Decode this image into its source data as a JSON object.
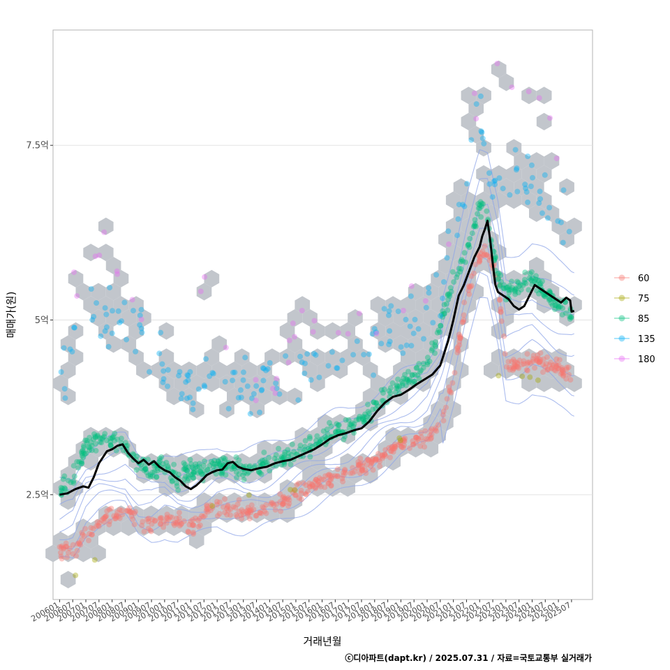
{
  "chart_data": {
    "type": "scatter",
    "title": "",
    "xlabel": "거래년월",
    "ylabel": "매매가(원)",
    "caption": "ⓒ디아파트(dapt.kr) / 2025.07.31 / 자료=국토교통부 실거래가",
    "x_range": [
      2005.75,
      2026.3
    ],
    "ylim": [
      1.0,
      9.15
    ],
    "y_ticks": [
      {
        "value": 2.5,
        "label": "2.5억"
      },
      {
        "value": 5.0,
        "label": "5억"
      },
      {
        "value": 7.5,
        "label": "7.5억"
      }
    ],
    "x_ticks": [
      {
        "value": 2006.0,
        "label": "200601"
      },
      {
        "value": 2006.5,
        "label": "200607"
      },
      {
        "value": 2007.0,
        "label": "200701"
      },
      {
        "value": 2007.5,
        "label": "200707"
      },
      {
        "value": 2008.0,
        "label": "200801"
      },
      {
        "value": 2008.5,
        "label": "200807"
      },
      {
        "value": 2009.0,
        "label": "200901"
      },
      {
        "value": 2009.5,
        "label": "200907"
      },
      {
        "value": 2010.0,
        "label": "201001"
      },
      {
        "value": 2010.5,
        "label": "201007"
      },
      {
        "value": 2011.0,
        "label": "201101"
      },
      {
        "value": 2011.5,
        "label": "201107"
      },
      {
        "value": 2012.0,
        "label": "201201"
      },
      {
        "value": 2012.5,
        "label": "201207"
      },
      {
        "value": 2013.0,
        "label": "201301"
      },
      {
        "value": 2013.5,
        "label": "201307"
      },
      {
        "value": 2014.0,
        "label": "201401"
      },
      {
        "value": 2014.5,
        "label": "201407"
      },
      {
        "value": 2015.0,
        "label": "201501"
      },
      {
        "value": 2015.5,
        "label": "201507"
      },
      {
        "value": 2016.0,
        "label": "201601"
      },
      {
        "value": 2016.5,
        "label": "201607"
      },
      {
        "value": 2017.0,
        "label": "201701"
      },
      {
        "value": 2017.5,
        "label": "201707"
      },
      {
        "value": 2018.0,
        "label": "201801"
      },
      {
        "value": 2018.5,
        "label": "201807"
      },
      {
        "value": 2019.0,
        "label": "201901"
      },
      {
        "value": 2019.5,
        "label": "201907"
      },
      {
        "value": 2020.0,
        "label": "202001"
      },
      {
        "value": 2020.5,
        "label": "202007"
      },
      {
        "value": 2021.0,
        "label": "202101"
      },
      {
        "value": 2021.5,
        "label": "202107"
      },
      {
        "value": 2022.0,
        "label": "202201"
      },
      {
        "value": 2022.5,
        "label": "202207"
      },
      {
        "value": 2023.0,
        "label": "202301"
      },
      {
        "value": 2023.5,
        "label": "202307"
      },
      {
        "value": 2024.0,
        "label": "202401"
      },
      {
        "value": 2024.5,
        "label": "202407"
      },
      {
        "value": 2025.0,
        "label": "202501"
      },
      {
        "value": 2025.5,
        "label": "202507"
      }
    ],
    "legend": {
      "position": "right",
      "entries": [
        {
          "name": "60",
          "color": "#F8766D"
        },
        {
          "name": "75",
          "color": "#A3A500"
        },
        {
          "name": "85",
          "color": "#00BF7D"
        },
        {
          "name": "135",
          "color": "#00B0F6"
        },
        {
          "name": "180",
          "color": "#E76BF3"
        }
      ]
    },
    "hexbin_color": "#c2c6cc",
    "contour_color": "#8fa6e8",
    "median_line_color": "#000000",
    "series": [
      {
        "name": "60",
        "color": "#F8766D",
        "trend": [
          [
            2006.0,
            1.72
          ],
          [
            2006.5,
            1.68
          ],
          [
            2007.0,
            1.95
          ],
          [
            2007.5,
            2.1
          ],
          [
            2008.0,
            2.18
          ],
          [
            2008.5,
            2.3
          ],
          [
            2009.0,
            2.08
          ],
          [
            2009.5,
            2.05
          ],
          [
            2010.0,
            2.15
          ],
          [
            2010.5,
            2.1
          ],
          [
            2011.0,
            2.05
          ],
          [
            2011.5,
            2.2
          ],
          [
            2012.0,
            2.3
          ],
          [
            2012.5,
            2.3
          ],
          [
            2013.0,
            2.25
          ],
          [
            2013.5,
            2.25
          ],
          [
            2014.0,
            2.3
          ],
          [
            2014.5,
            2.4
          ],
          [
            2015.0,
            2.5
          ],
          [
            2015.5,
            2.6
          ],
          [
            2016.0,
            2.68
          ],
          [
            2016.5,
            2.75
          ],
          [
            2017.0,
            2.8
          ],
          [
            2017.5,
            2.9
          ],
          [
            2018.0,
            3.0
          ],
          [
            2018.5,
            3.1
          ],
          [
            2019.0,
            3.2
          ],
          [
            2019.5,
            3.25
          ],
          [
            2020.0,
            3.3
          ],
          [
            2020.5,
            3.55
          ],
          [
            2021.0,
            4.2
          ],
          [
            2021.5,
            5.3
          ],
          [
            2022.0,
            5.95
          ],
          [
            2022.3,
            6.0
          ],
          [
            2022.7,
            5.6
          ],
          [
            2023.0,
            4.4
          ],
          [
            2023.5,
            4.35
          ],
          [
            2024.0,
            4.45
          ],
          [
            2024.5,
            4.4
          ],
          [
            2025.0,
            4.3
          ],
          [
            2025.5,
            4.2
          ]
        ],
        "spread": 0.12,
        "points": 520
      },
      {
        "name": "75",
        "color": "#A3A500",
        "trend": [
          [
            2006.3,
            1.2
          ],
          [
            2010.0,
            2.5
          ],
          [
            2012.0,
            2.3
          ],
          [
            2013.0,
            2.5
          ],
          [
            2015.5,
            2.6
          ],
          [
            2018.0,
            3.45
          ],
          [
            2019.5,
            3.2
          ],
          [
            2023.0,
            4.3
          ],
          [
            2025.2,
            3.95
          ]
        ],
        "spread": 0.05,
        "points": 12
      },
      {
        "name": "85",
        "color": "#00BF7D",
        "trend": [
          [
            2006.0,
            2.55
          ],
          [
            2006.5,
            2.7
          ],
          [
            2007.0,
            3.2
          ],
          [
            2007.5,
            3.3
          ],
          [
            2008.0,
            3.3
          ],
          [
            2008.5,
            3.2
          ],
          [
            2009.0,
            2.9
          ],
          [
            2009.5,
            2.85
          ],
          [
            2010.0,
            2.9
          ],
          [
            2010.5,
            2.75
          ],
          [
            2011.0,
            2.85
          ],
          [
            2011.5,
            2.85
          ],
          [
            2012.0,
            2.95
          ],
          [
            2012.5,
            2.9
          ],
          [
            2013.0,
            2.85
          ],
          [
            2013.5,
            2.9
          ],
          [
            2014.0,
            2.95
          ],
          [
            2014.5,
            3.0
          ],
          [
            2015.0,
            3.1
          ],
          [
            2015.5,
            3.2
          ],
          [
            2016.0,
            3.3
          ],
          [
            2016.5,
            3.4
          ],
          [
            2017.0,
            3.45
          ],
          [
            2017.5,
            3.55
          ],
          [
            2018.0,
            3.75
          ],
          [
            2018.5,
            3.95
          ],
          [
            2019.0,
            4.1
          ],
          [
            2019.5,
            4.2
          ],
          [
            2020.0,
            4.4
          ],
          [
            2020.5,
            4.9
          ],
          [
            2021.0,
            5.6
          ],
          [
            2021.5,
            6.0
          ],
          [
            2022.0,
            6.6
          ],
          [
            2022.3,
            6.5
          ],
          [
            2022.7,
            5.6
          ],
          [
            2023.0,
            5.4
          ],
          [
            2023.5,
            5.5
          ],
          [
            2024.0,
            5.6
          ],
          [
            2024.5,
            5.4
          ],
          [
            2025.0,
            5.2
          ],
          [
            2025.5,
            5.1
          ]
        ],
        "spread": 0.14,
        "points": 620
      },
      {
        "name": "135",
        "color": "#00B0F6",
        "trend": [
          [
            2006.0,
            4.0
          ],
          [
            2006.5,
            5.0
          ],
          [
            2007.0,
            5.3
          ],
          [
            2007.5,
            5.1
          ],
          [
            2008.0,
            5.1
          ],
          [
            2008.5,
            5.1
          ],
          [
            2009.0,
            4.9
          ],
          [
            2009.5,
            4.5
          ],
          [
            2010.0,
            4.4
          ],
          [
            2010.5,
            4.2
          ],
          [
            2011.0,
            4.0
          ],
          [
            2011.5,
            4.2
          ],
          [
            2012.0,
            4.1
          ],
          [
            2012.5,
            4.0
          ],
          [
            2013.0,
            4.0
          ],
          [
            2013.5,
            4.0
          ],
          [
            2014.0,
            4.05
          ],
          [
            2014.5,
            4.1
          ],
          [
            2015.0,
            4.2
          ],
          [
            2015.5,
            4.3
          ],
          [
            2016.0,
            4.35
          ],
          [
            2016.5,
            4.4
          ],
          [
            2017.0,
            4.5
          ],
          [
            2017.5,
            4.6
          ],
          [
            2018.0,
            4.7
          ],
          [
            2018.5,
            4.75
          ],
          [
            2019.0,
            4.85
          ],
          [
            2019.5,
            5.0
          ],
          [
            2020.0,
            5.1
          ],
          [
            2020.5,
            5.5
          ],
          [
            2021.0,
            6.2
          ],
          [
            2021.5,
            7.0
          ],
          [
            2022.0,
            8.0
          ],
          [
            2022.5,
            7.0
          ],
          [
            2023.0,
            6.8
          ],
          [
            2023.5,
            7.2
          ],
          [
            2024.0,
            7.0
          ],
          [
            2024.5,
            6.8
          ],
          [
            2025.0,
            6.5
          ],
          [
            2025.5,
            6.5
          ]
        ],
        "spread": 0.28,
        "points": 190
      },
      {
        "name": "180",
        "color": "#E76BF3",
        "trend": [
          [
            2006.2,
            5.0
          ],
          [
            2007.0,
            5.7
          ],
          [
            2008.0,
            6.1
          ],
          [
            2008.5,
            5.6
          ],
          [
            2009.0,
            5.2
          ],
          [
            2009.5,
            5.5
          ],
          [
            2010.5,
            5.2
          ],
          [
            2011.5,
            5.3
          ],
          [
            2013.0,
            4.3
          ],
          [
            2014.0,
            4.1
          ],
          [
            2015.0,
            4.8
          ],
          [
            2016.5,
            4.9
          ],
          [
            2018.0,
            4.9
          ],
          [
            2019.0,
            5.3
          ],
          [
            2020.0,
            5.5
          ],
          [
            2021.0,
            6.3
          ],
          [
            2021.5,
            7.2
          ],
          [
            2022.0,
            8.3
          ],
          [
            2022.5,
            8.8
          ],
          [
            2023.0,
            8.3
          ],
          [
            2023.5,
            8.0
          ],
          [
            2024.0,
            8.5
          ],
          [
            2024.5,
            7.8
          ],
          [
            2025.0,
            7.2
          ],
          [
            2025.5,
            6.7
          ]
        ],
        "spread": 0.3,
        "points": 40
      }
    ],
    "median_line": [
      [
        2006.0,
        2.5
      ],
      [
        2006.3,
        2.52
      ],
      [
        2006.6,
        2.58
      ],
      [
        2006.9,
        2.62
      ],
      [
        2007.1,
        2.6
      ],
      [
        2007.3,
        2.75
      ],
      [
        2007.5,
        2.95
      ],
      [
        2007.8,
        3.12
      ],
      [
        2008.0,
        3.15
      ],
      [
        2008.2,
        3.2
      ],
      [
        2008.4,
        3.22
      ],
      [
        2008.6,
        3.1
      ],
      [
        2008.8,
        3.02
      ],
      [
        2009.0,
        2.95
      ],
      [
        2009.2,
        3.0
      ],
      [
        2009.4,
        2.93
      ],
      [
        2009.6,
        2.98
      ],
      [
        2009.8,
        2.9
      ],
      [
        2010.0,
        2.85
      ],
      [
        2010.2,
        2.82
      ],
      [
        2010.4,
        2.75
      ],
      [
        2010.6,
        2.7
      ],
      [
        2010.8,
        2.62
      ],
      [
        2011.0,
        2.58
      ],
      [
        2011.2,
        2.63
      ],
      [
        2011.4,
        2.7
      ],
      [
        2011.6,
        2.78
      ],
      [
        2011.8,
        2.82
      ],
      [
        2012.0,
        2.85
      ],
      [
        2012.2,
        2.86
      ],
      [
        2012.4,
        2.95
      ],
      [
        2012.6,
        2.97
      ],
      [
        2012.8,
        2.9
      ],
      [
        2013.0,
        2.87
      ],
      [
        2013.3,
        2.85
      ],
      [
        2013.6,
        2.88
      ],
      [
        2013.9,
        2.9
      ],
      [
        2014.2,
        2.95
      ],
      [
        2014.5,
        2.98
      ],
      [
        2014.8,
        3.0
      ],
      [
        2015.1,
        3.05
      ],
      [
        2015.4,
        3.1
      ],
      [
        2015.7,
        3.15
      ],
      [
        2016.0,
        3.22
      ],
      [
        2016.3,
        3.3
      ],
      [
        2016.6,
        3.35
      ],
      [
        2016.9,
        3.38
      ],
      [
        2017.2,
        3.42
      ],
      [
        2017.5,
        3.45
      ],
      [
        2017.8,
        3.55
      ],
      [
        2018.1,
        3.7
      ],
      [
        2018.4,
        3.82
      ],
      [
        2018.7,
        3.9
      ],
      [
        2019.0,
        3.93
      ],
      [
        2019.3,
        4.0
      ],
      [
        2019.6,
        4.08
      ],
      [
        2019.9,
        4.15
      ],
      [
        2020.2,
        4.22
      ],
      [
        2020.5,
        4.35
      ],
      [
        2020.8,
        4.7
      ],
      [
        2021.0,
        5.0
      ],
      [
        2021.2,
        5.35
      ],
      [
        2021.4,
        5.5
      ],
      [
        2021.6,
        5.7
      ],
      [
        2021.8,
        5.9
      ],
      [
        2022.0,
        6.05
      ],
      [
        2022.1,
        6.2
      ],
      [
        2022.2,
        6.3
      ],
      [
        2022.3,
        6.42
      ],
      [
        2022.4,
        6.15
      ],
      [
        2022.5,
        5.8
      ],
      [
        2022.6,
        5.5
      ],
      [
        2022.7,
        5.4
      ],
      [
        2022.9,
        5.35
      ],
      [
        2023.1,
        5.3
      ],
      [
        2023.3,
        5.2
      ],
      [
        2023.5,
        5.15
      ],
      [
        2023.7,
        5.2
      ],
      [
        2023.9,
        5.35
      ],
      [
        2024.1,
        5.5
      ],
      [
        2024.3,
        5.45
      ],
      [
        2024.5,
        5.4
      ],
      [
        2024.7,
        5.35
      ],
      [
        2024.9,
        5.3
      ],
      [
        2025.1,
        5.25
      ],
      [
        2025.3,
        5.32
      ],
      [
        2025.45,
        5.28
      ],
      [
        2025.5,
        5.12
      ],
      [
        2025.6,
        5.13
      ]
    ]
  }
}
